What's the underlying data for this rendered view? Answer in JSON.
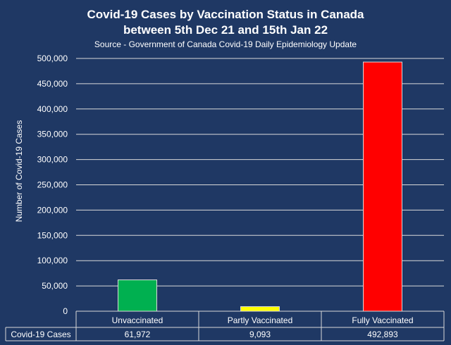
{
  "title_line1": "Covid-19 Cases by Vaccination Status in Canada",
  "title_line2": "between 5th Dec 21 and 15th Jan 22",
  "subtitle": "Source - Government of Canada Covid-19 Daily Epidemiology Update",
  "chart_data": {
    "type": "bar",
    "title": "Covid-19 Cases by Vaccination Status in Canada between 5th Dec 21 and 15th Jan 22",
    "subtitle": "Source - Government of Canada Covid-19 Daily Epidemiology Update",
    "xlabel": "",
    "ylabel": "Number of Covid-19 Cases",
    "categories": [
      "Unvaccinated",
      "Partly Vaccinated",
      "Fully Vaccinated"
    ],
    "series": [
      {
        "name": "Covid-19 Cases",
        "values": [
          61972,
          9093,
          492893
        ],
        "labels": [
          "61,972",
          "9,093",
          "492,893"
        ]
      }
    ],
    "bar_colors": [
      "#00b050",
      "#ffff00",
      "#ff0000"
    ],
    "ylim": [
      0,
      500000
    ],
    "yticks": [
      0,
      50000,
      100000,
      150000,
      200000,
      250000,
      300000,
      350000,
      400000,
      450000,
      500000
    ],
    "ytick_labels": [
      "0",
      "50,000",
      "100,000",
      "150,000",
      "200,000",
      "250,000",
      "300,000",
      "350,000",
      "400,000",
      "450,000",
      "500,000"
    ],
    "grid": true,
    "data_table": true,
    "legend": "none"
  }
}
